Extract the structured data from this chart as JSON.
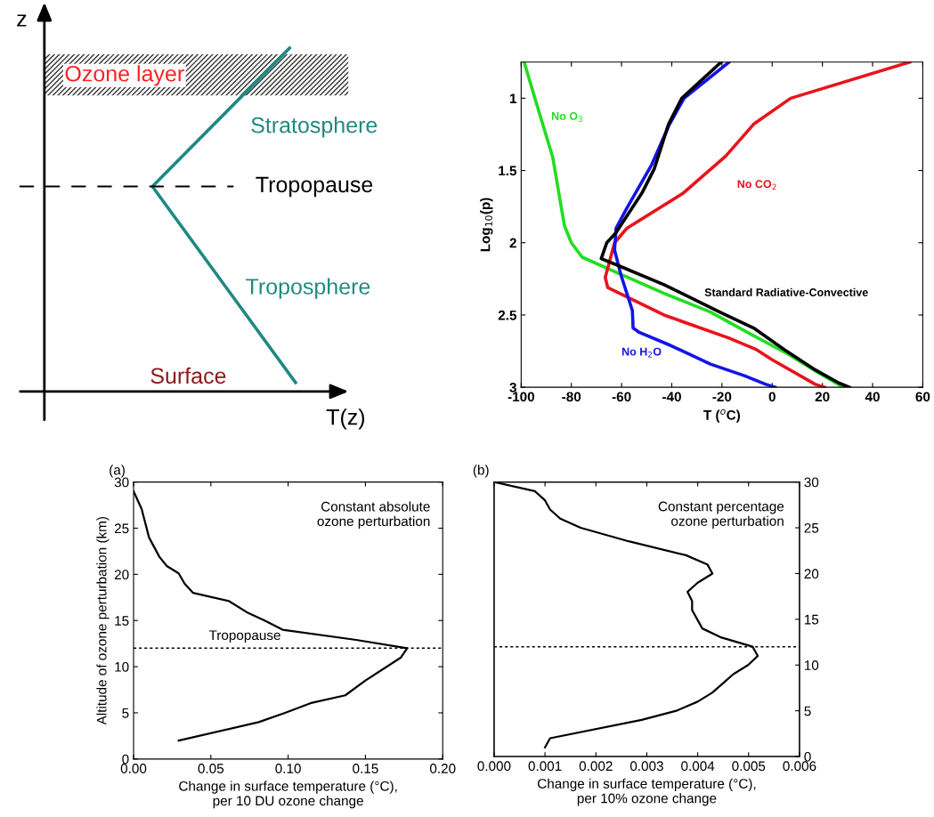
{
  "chart_data": [
    {
      "type": "other",
      "xlabel": "T(z)",
      "ylabel": "z",
      "annotations": [
        "Ozone layer",
        "Stratosphere",
        "Tropopause",
        "Troposphere",
        "Surface"
      ]
    },
    {
      "type": "line",
      "xlabel": "T ($^{o}$C)",
      "ylabel": "Log$_{10}$(p)",
      "xlim": [
        -100,
        60
      ],
      "xticks": [
        -100,
        -80,
        -60,
        -40,
        -20,
        0,
        20,
        40,
        60
      ],
      "ylim": [
        3,
        0.75
      ],
      "yticks": [
        1,
        1.5,
        2,
        2.5,
        3
      ],
      "series": [
        {
          "name": "No O$_{3}$",
          "color": "#22dd22",
          "x": [
            -98.8,
            -94.2,
            -87.4,
            -82.8,
            -80,
            -75.7,
            -62.8,
            -43.1,
            -24.6,
            -9.9,
            6.2,
            18.5,
            28.3
          ],
          "values": [
            0.75,
            1.02,
            1.41,
            1.88,
            2.0,
            2.1,
            2.2,
            2.35,
            2.48,
            2.62,
            2.77,
            2.9,
            3.0
          ]
        },
        {
          "name": "No CO$_{2}$",
          "color": "#e8141c",
          "x": [
            54.8,
            7.4,
            -7.4,
            -18.5,
            -35.7,
            -57.9,
            -62.8,
            -66.5,
            -65.5,
            -43.1,
            -17.2,
            -6.2,
            0,
            17.2,
            20.9
          ],
          "values": [
            0.75,
            1.0,
            1.18,
            1.4,
            1.66,
            1.9,
            2.0,
            2.24,
            2.31,
            2.5,
            2.66,
            2.74,
            2.81,
            2.98,
            3.0
          ]
        },
        {
          "name": "No H$_{2}$O",
          "color": "#1414e6",
          "x": [
            -17.2,
            -35.1,
            -40.9,
            -48,
            -57.9,
            -62.2,
            -62.8,
            -60.3,
            -55.7,
            -55.4,
            -53,
            -40.6,
            -24.6,
            -11.1,
            -2.5,
            1.2
          ],
          "values": [
            0.75,
            1.0,
            1.18,
            1.46,
            1.76,
            1.9,
            2.05,
            2.22,
            2.47,
            2.59,
            2.62,
            2.71,
            2.84,
            2.92,
            2.98,
            3.0
          ]
        },
        {
          "name": "Standard Radiative-Convective",
          "color": "#000000",
          "x": [
            -20.3,
            -36,
            -41.3,
            -47,
            -51.7,
            -62.2,
            -65.9,
            -68.1,
            -61,
            -43.1,
            -20.9,
            -7.4,
            4.9,
            17.2,
            26.5,
            30.8
          ],
          "values": [
            0.75,
            1.0,
            1.18,
            1.49,
            1.65,
            1.93,
            2.0,
            2.11,
            2.16,
            2.29,
            2.48,
            2.59,
            2.74,
            2.88,
            2.97,
            3.0
          ]
        }
      ]
    },
    {
      "type": "line",
      "title": "(a)",
      "xlabel": "Change in surface temperature (°C),\nper 10 DU ozone change",
      "ylabel": "Altitude of ozone perturbation (km)",
      "xlim": [
        0,
        0.2
      ],
      "xticks": [
        {
          "value": 0,
          "label": "0.00"
        },
        0.05,
        {
          "value": 0.1,
          "label": "0.10"
        },
        0.15,
        {
          "value": 0.2,
          "label": "0.20"
        }
      ],
      "ylim": [
        0,
        30
      ],
      "yticks": [
        0,
        5,
        10,
        15,
        20,
        25,
        30
      ],
      "series": [
        {
          "color": "#000000",
          "x": [
            0,
            0.0052,
            0.01,
            0.0167,
            0.0215,
            0.0292,
            0.033,
            0.0384,
            0.0618,
            0.0733,
            0.0848,
            0.0964,
            0.144,
            0.177,
            0.173,
            0.15,
            0.137,
            0.1155,
            0.098,
            0.081,
            0.0292
          ],
          "values": [
            29,
            27.1,
            24,
            21.9,
            20.9,
            20.1,
            19,
            18,
            17.1,
            15.9,
            15,
            14,
            12.9,
            12,
            11,
            8.5,
            6.9,
            6.1,
            5,
            4,
            2
          ]
        }
      ],
      "ref_lines": [
        {
          "axis": "y",
          "value": 12,
          "label": "Tropopause",
          "line_style": "dotted",
          "color": "#000000"
        }
      ],
      "annotations": [
        "Constant absolute\nozone perturbation"
      ]
    },
    {
      "type": "line",
      "title": "(b)",
      "xlabel": "Change in surface temperature (°C),\nper 10% ozone change",
      "xlim": [
        0,
        0.006
      ],
      "xticks": [
        {
          "value": 0,
          "label": "0.000"
        },
        0.001,
        0.002,
        0.003,
        0.004,
        0.005,
        0.006
      ],
      "y2lim": [
        0,
        30
      ],
      "y2ticks": [
        0,
        5,
        10,
        15,
        20,
        25,
        30
      ],
      "series": [
        {
          "color": "#000000",
          "axis": "y2",
          "x": [
            0,
            0.0008,
            0.001,
            0.0011,
            0.0013,
            0.0017,
            0.00266,
            0.00377,
            0.00419,
            0.00429,
            0.004,
            0.0038,
            0.00389,
            0.00389,
            0.00409,
            0.00447,
            0.00508,
            0.00518,
            0.00499,
            0.0047,
            0.00429,
            0.004,
            0.00358,
            0.0029,
            0.0011,
            0.001
          ],
          "values": [
            30,
            29,
            28,
            27,
            26,
            25,
            23.5,
            22,
            21,
            20,
            19,
            18,
            17,
            16,
            14,
            13,
            12,
            11,
            10,
            9,
            7,
            6,
            5,
            4,
            2,
            1
          ]
        }
      ],
      "ref_lines": [
        {
          "axis": "y2",
          "value": 12,
          "line_style": "dotted",
          "color": "#000000"
        }
      ],
      "annotations": [
        "Constant percentage\nozone perturbation"
      ]
    }
  ]
}
